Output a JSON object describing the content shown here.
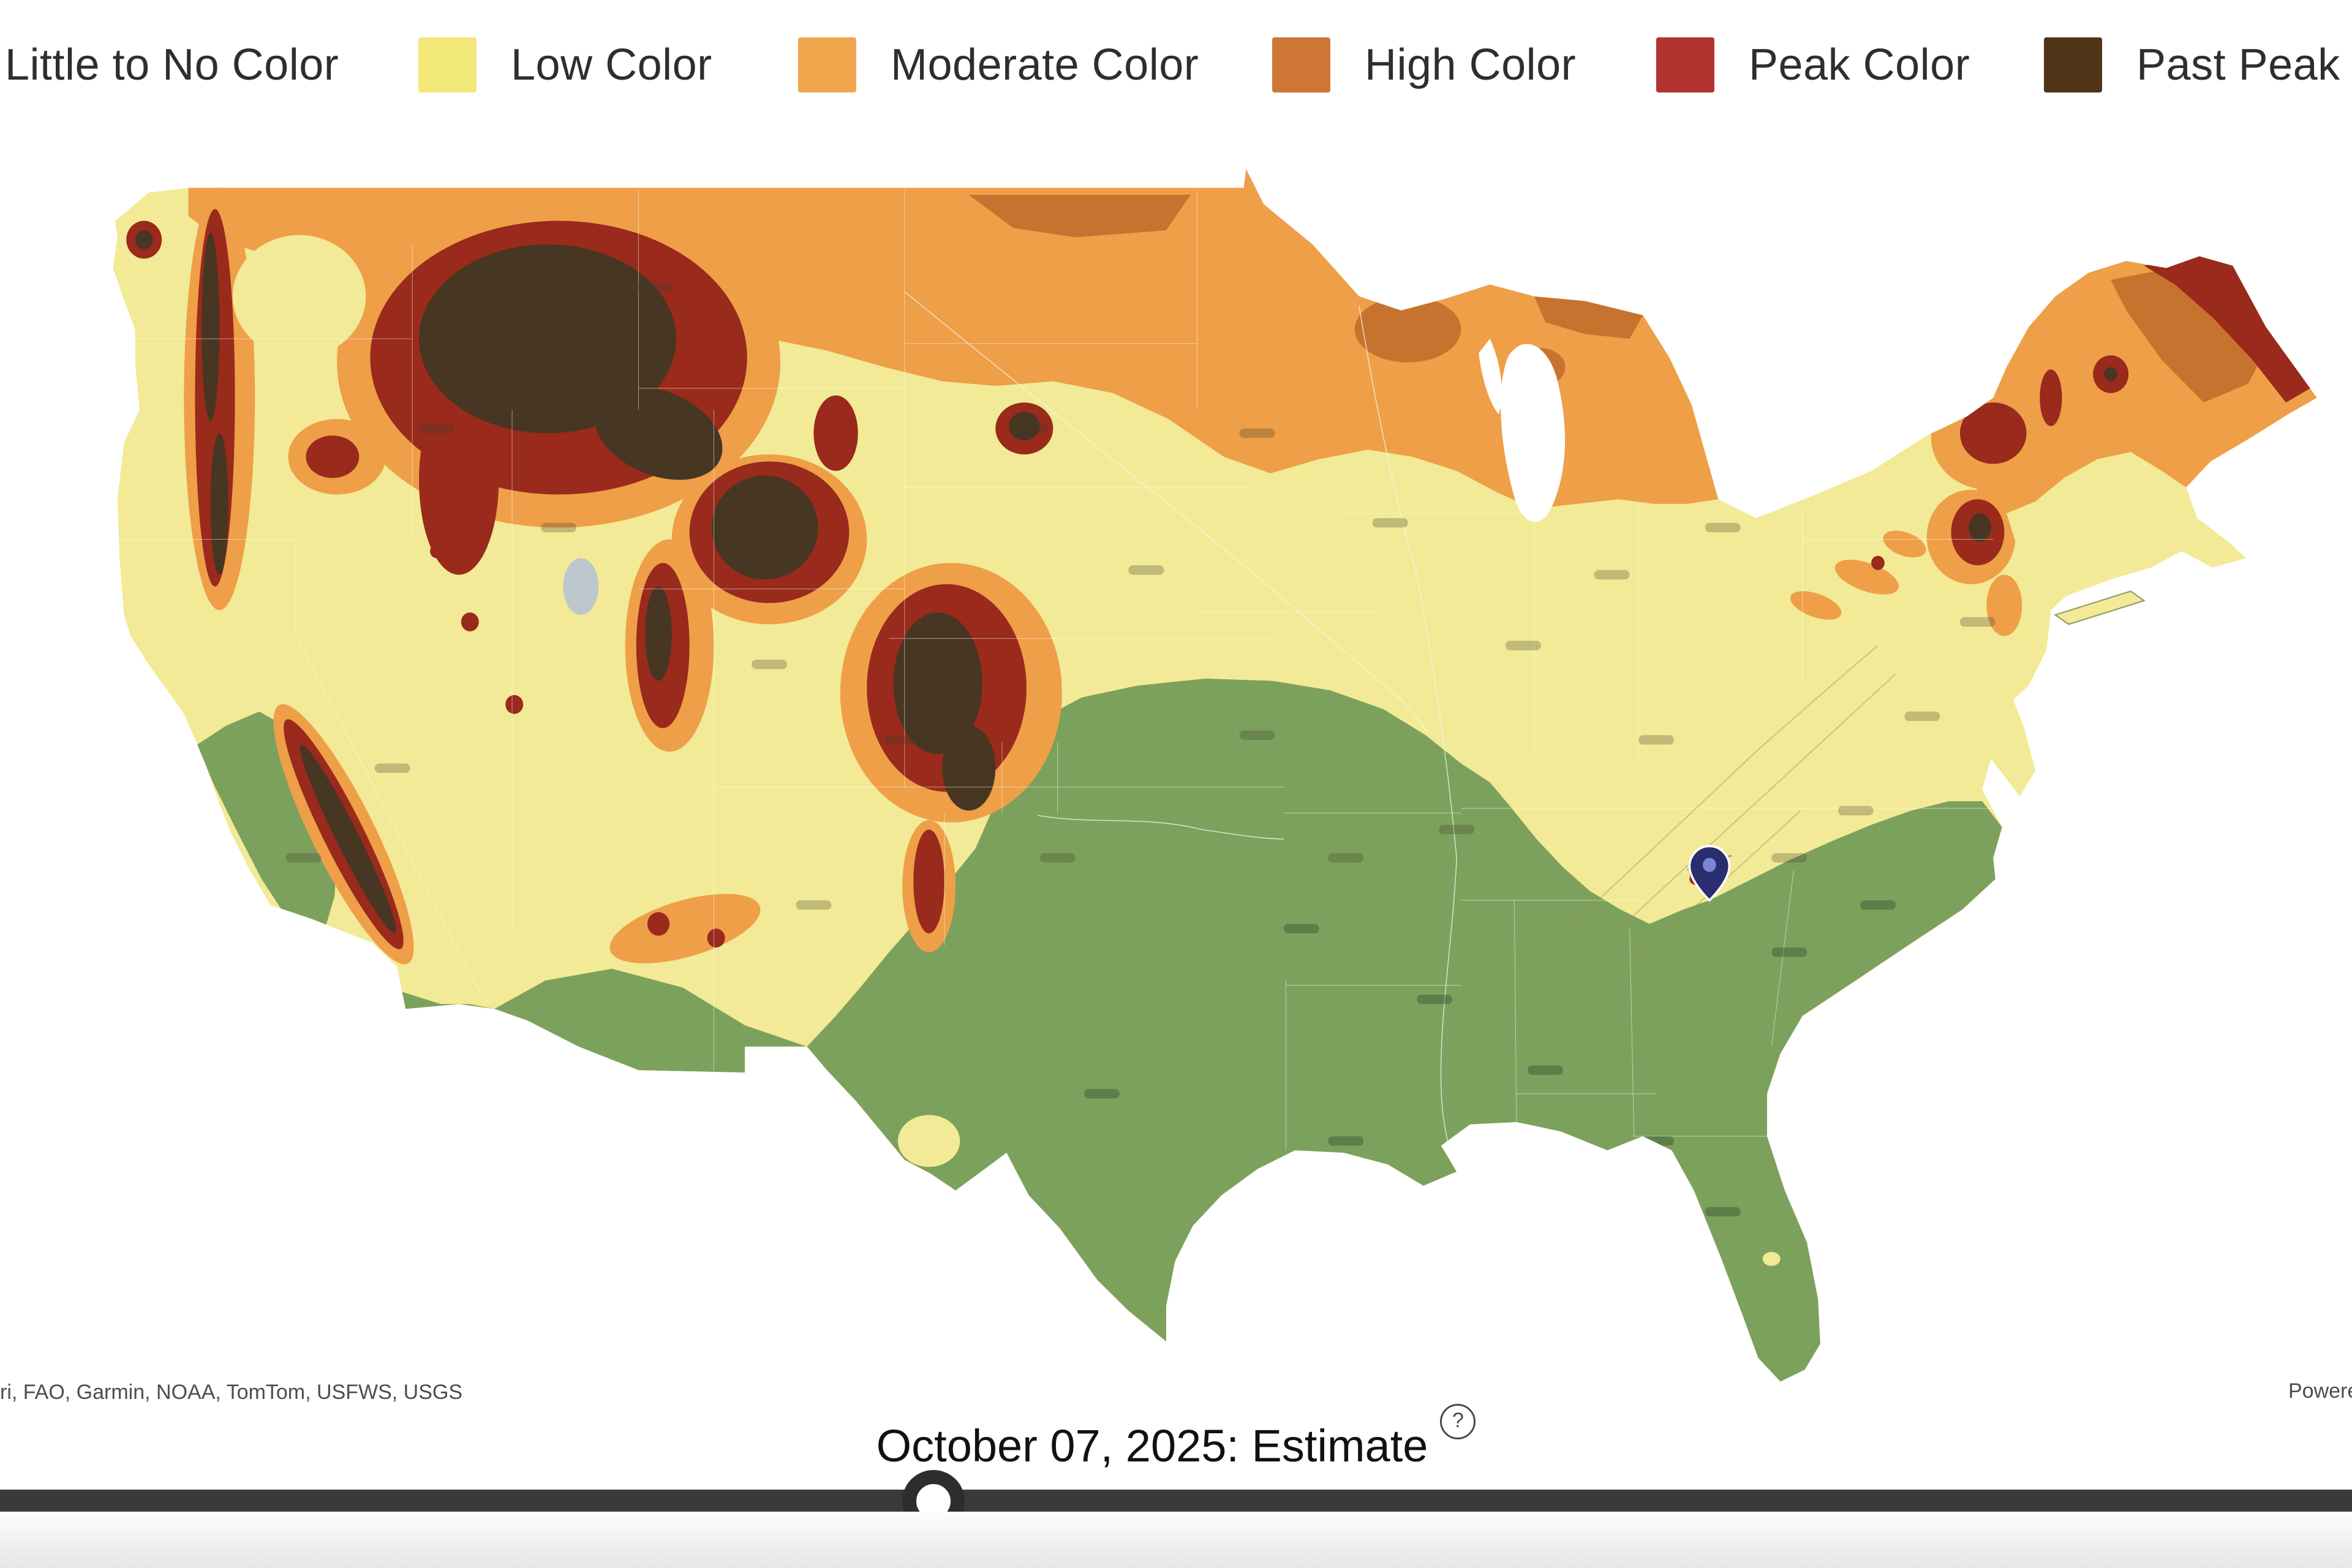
{
  "legend": {
    "items": [
      {
        "id": "little-to-no",
        "label": "Little to No Color",
        "color": null
      },
      {
        "id": "low",
        "label": "Low Color",
        "color": "#F2E878"
      },
      {
        "id": "moderate",
        "label": "Moderate Color",
        "color": "#EFA64D"
      },
      {
        "id": "high",
        "label": "High Color",
        "color": "#CE7636"
      },
      {
        "id": "peak",
        "label": "Peak Color",
        "color": "#B23230"
      },
      {
        "id": "past-peak",
        "label": "Past Peak Color",
        "color": "#503418"
      }
    ]
  },
  "map": {
    "attribution": "ri, FAO, Garmin, NOAA, TomTom, USFWS, USGS",
    "powered_by": "Powered",
    "pin": "location-pin",
    "region_colors": {
      "low": "#F2EA96",
      "little_to_no": "#7CA15C",
      "moderate": "#EE9F48",
      "high": "#C8722F",
      "peak": "#992A1C",
      "past_peak": "#473621",
      "water": "#FFFFFF",
      "salt_lake": "#BCC8CC",
      "pin_fill": "#2A2D6E",
      "pin_center": "#7B86D2"
    }
  },
  "timeline": {
    "date_label": "October 07, 2025: Estimate",
    "help_glyph": "?",
    "slider_position_pct": 39.7
  }
}
